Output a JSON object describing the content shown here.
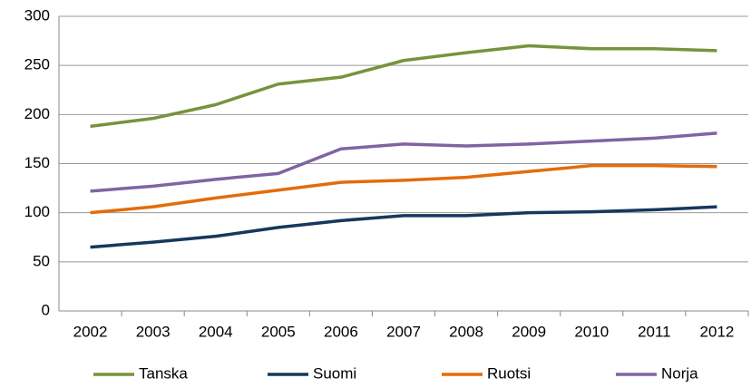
{
  "chart_data": {
    "type": "line",
    "categories": [
      "2002",
      "2003",
      "2004",
      "2005",
      "2006",
      "2007",
      "2008",
      "2009",
      "2010",
      "2011",
      "2012"
    ],
    "series": [
      {
        "name": "Tanska",
        "color": "#77933c",
        "values": [
          188,
          196,
          210,
          231,
          238,
          255,
          263,
          270,
          267,
          267,
          265
        ]
      },
      {
        "name": "Suomi",
        "color": "#17375e",
        "values": [
          65,
          70,
          76,
          85,
          92,
          97,
          97,
          100,
          101,
          103,
          106
        ]
      },
      {
        "name": "Ruotsi",
        "color": "#e46c0a",
        "values": [
          100,
          106,
          115,
          123,
          131,
          133,
          136,
          142,
          148,
          148,
          147
        ]
      },
      {
        "name": "Norja",
        "color": "#8064a2",
        "values": [
          122,
          127,
          134,
          140,
          165,
          170,
          168,
          170,
          173,
          176,
          181
        ]
      }
    ],
    "ylim": [
      0,
      300
    ],
    "yticks": [
      0,
      50,
      100,
      150,
      200,
      250,
      300
    ],
    "grid": true,
    "legend": "bottom"
  }
}
